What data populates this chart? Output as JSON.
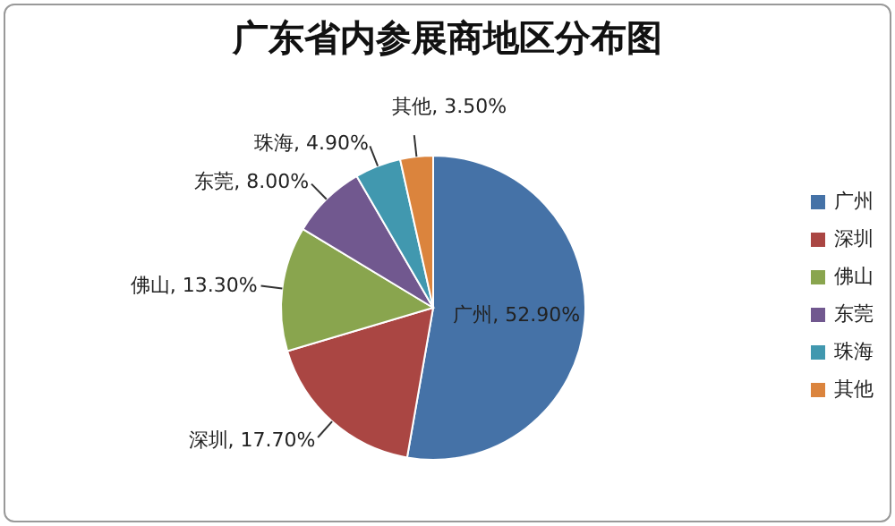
{
  "chart_data": {
    "type": "pie",
    "title": "广东省内参展商地区分布图",
    "categories": [
      "广州",
      "深圳",
      "佛山",
      "东莞",
      "珠海",
      "其他"
    ],
    "values": [
      52.9,
      17.7,
      13.3,
      8.0,
      4.9,
      3.5
    ],
    "value_labels": [
      "广州, 52.90%",
      "深圳, 17.70%",
      "佛山, 13.30%",
      "东莞, 8.00%",
      "珠海, 4.90%",
      "其他, 3.50%"
    ],
    "colors": [
      "#4572a7",
      "#aa4643",
      "#89a54e",
      "#71588f",
      "#4198af",
      "#db843d"
    ],
    "legend": "right"
  }
}
